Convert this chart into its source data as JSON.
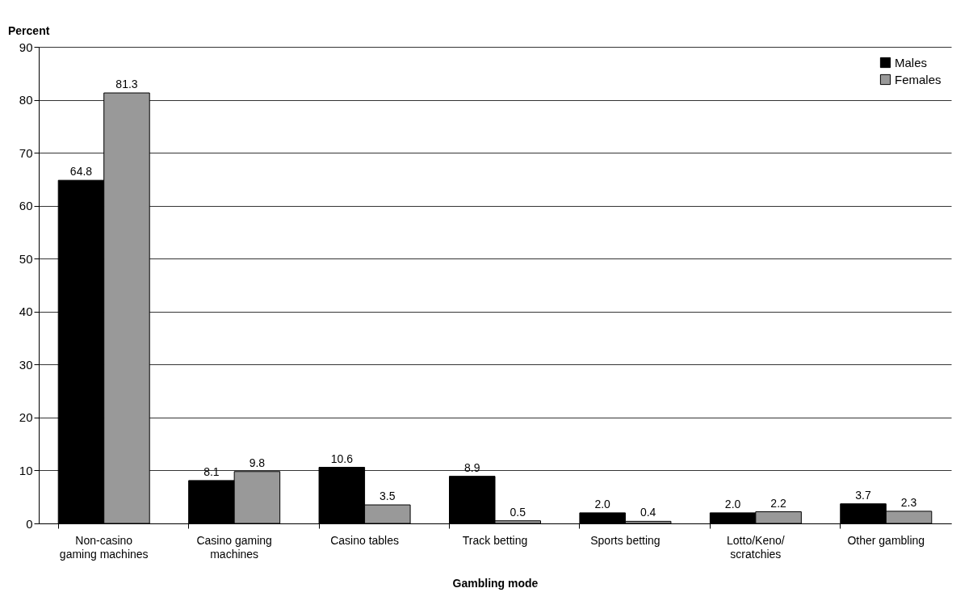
{
  "chart_data": {
    "type": "bar",
    "ylabel": "Percent",
    "xlabel": "Gambling mode",
    "categories": [
      "Non-casino gaming machines",
      "Casino gaming machines",
      "Casino tables",
      "Track betting",
      "Sports betting",
      "Lotto/Keno/scratchies",
      "Other gambling"
    ],
    "series": [
      {
        "name": "Males",
        "color": "#000000",
        "values": [
          64.8,
          8.1,
          10.6,
          8.9,
          2.0,
          2.0,
          3.7
        ],
        "value_labels": [
          "64.8",
          "8.1",
          "10.6",
          "8.9",
          "2.0",
          "2.0",
          "3.7"
        ]
      },
      {
        "name": "Females",
        "color": "#999999",
        "values": [
          81.3,
          9.8,
          3.5,
          0.5,
          0.4,
          2.2,
          2.3
        ],
        "value_labels": [
          "81.3",
          "9.8",
          "3.5",
          "0.5",
          "0.4",
          "2.2",
          "2.3"
        ]
      }
    ],
    "ylim": [
      0,
      90
    ],
    "yticks": [
      0,
      10,
      20,
      30,
      40,
      50,
      60,
      70,
      80,
      90
    ],
    "grid": "y",
    "legend": "top right"
  }
}
